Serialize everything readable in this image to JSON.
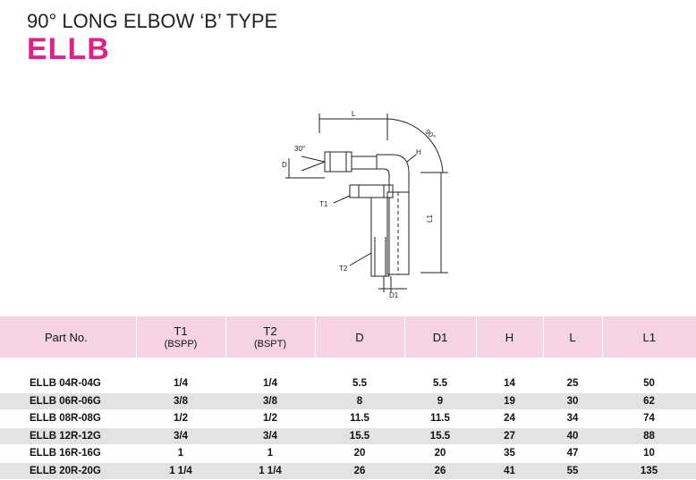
{
  "header": {
    "title": "90° LONG ELBOW ‘B’ TYPE",
    "code": "ELLB"
  },
  "drawing": {
    "labels": {
      "l": "L",
      "angle_90": "90°",
      "angle_30": "30°",
      "d": "D",
      "h": "H",
      "t1": "T1",
      "t2": "T2",
      "l1": "L1",
      "d1": "D1"
    }
  },
  "table": {
    "headers": {
      "part_no": "Part No.",
      "t1": "T1",
      "t1_sub": "(BSPP)",
      "t2": "T2",
      "t2_sub": "(BSPT)",
      "d": "D",
      "d1": "D1",
      "h": "H",
      "l": "L",
      "l1": "L1"
    },
    "rows": [
      [
        "ELLB 04R-04G",
        "1/4",
        "1/4",
        "5.5",
        "5.5",
        "14",
        "25",
        "50"
      ],
      [
        "ELLB 06R-06G",
        "3/8",
        "3/8",
        "8",
        "9",
        "19",
        "30",
        "62"
      ],
      [
        "ELLB 08R-08G",
        "1/2",
        "1/2",
        "11.5",
        "11.5",
        "24",
        "34",
        "74"
      ],
      [
        "ELLB 12R-12G",
        "3/4",
        "3/4",
        "15.5",
        "15.5",
        "27",
        "40",
        "88"
      ],
      [
        "ELLB 16R-16G",
        "1",
        "1",
        "20",
        "20",
        "35",
        "47",
        "10"
      ],
      [
        "ELLB 20R-20G",
        "1 1/4",
        "1 1/4",
        "26",
        "26",
        "41",
        "55",
        "135"
      ]
    ]
  }
}
